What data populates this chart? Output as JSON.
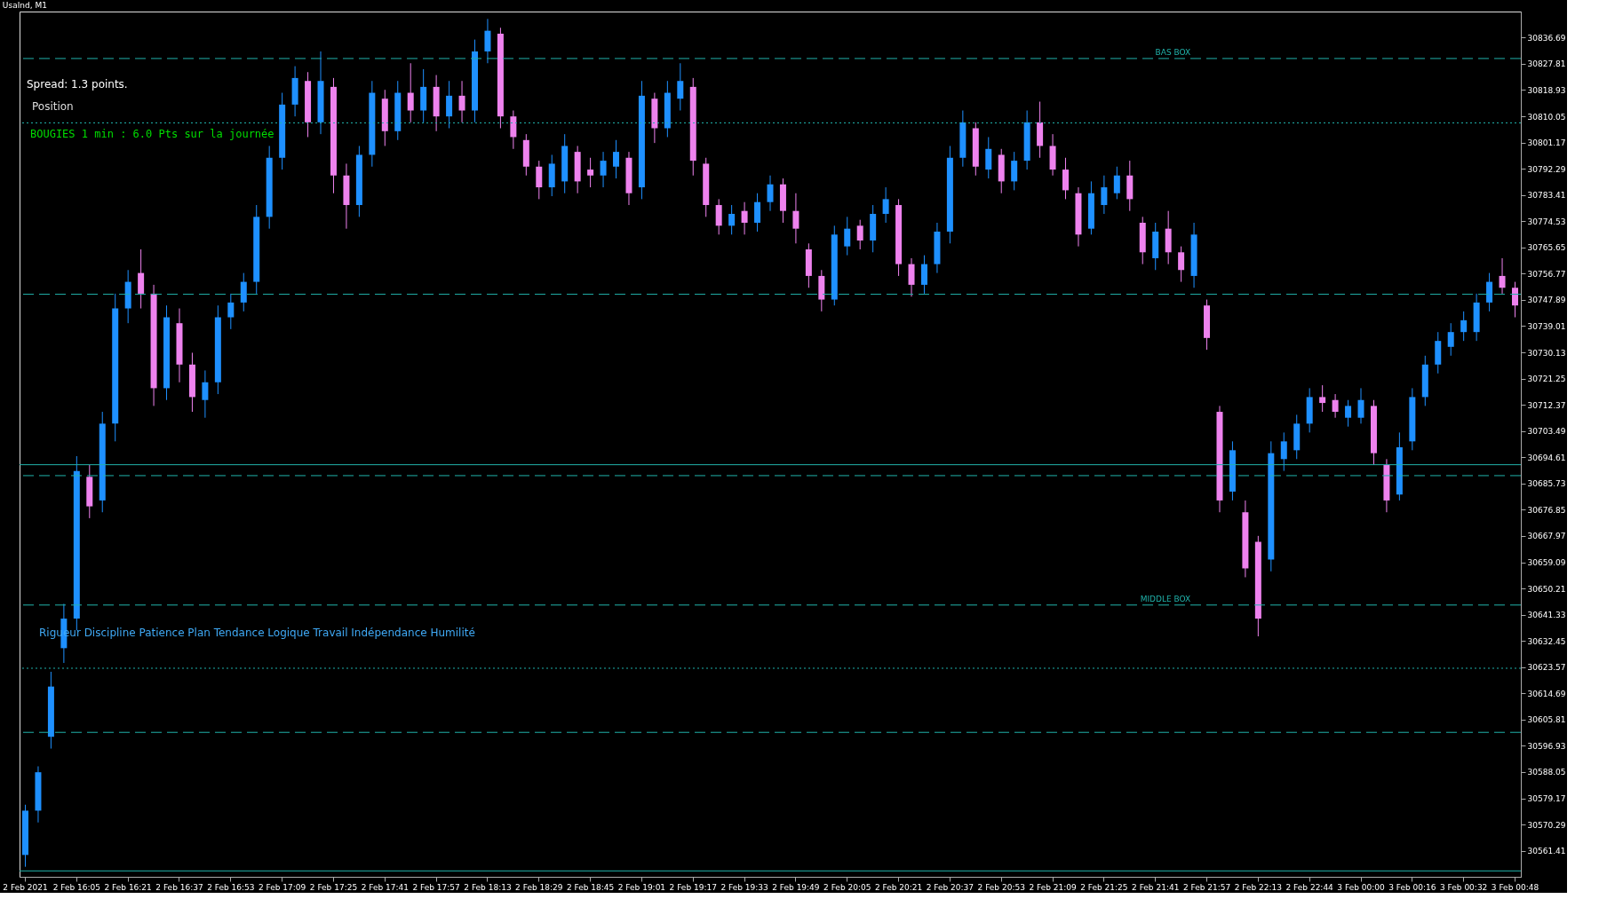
{
  "chart_data": {
    "type": "candlestick",
    "title": "UsaInd, M1",
    "categories": [
      "2 Feb 2021",
      null,
      null,
      null,
      "2 Feb 16:05",
      null,
      null,
      null,
      "2 Feb 16:21",
      null,
      null,
      null,
      "2 Feb 16:37",
      null,
      null,
      null,
      "2 Feb 16:53",
      null,
      null,
      null,
      "2 Feb 17:09",
      null,
      null,
      null,
      "2 Feb 17:25",
      null,
      null,
      null,
      "2 Feb 17:41",
      null,
      null,
      null,
      "2 Feb 17:57",
      null,
      null,
      null,
      "2 Feb 18:13",
      null,
      null,
      null,
      "2 Feb 18:29",
      null,
      null,
      null,
      "2 Feb 18:45",
      null,
      null,
      null,
      "2 Feb 19:01",
      null,
      null,
      null,
      "2 Feb 19:17",
      null,
      null,
      null,
      "2 Feb 19:33",
      null,
      null,
      null,
      "2 Feb 19:49",
      null,
      null,
      null,
      "2 Feb 20:05",
      null,
      null,
      null,
      "2 Feb 20:21",
      null,
      null,
      null,
      "2 Feb 20:37",
      null,
      null,
      null,
      "2 Feb 20:53",
      null,
      null,
      null,
      "2 Feb 21:09",
      null,
      null,
      null,
      "2 Feb 21:25",
      null,
      null,
      null,
      "2 Feb 21:41",
      null,
      null,
      null,
      "2 Feb 21:57",
      null,
      null,
      null,
      "2 Feb 22:13",
      null,
      null,
      null,
      "2 Feb 22:44",
      null,
      null,
      null,
      "3 Feb 00:00",
      null,
      null,
      null,
      "3 Feb 00:16",
      null,
      null,
      null,
      "3 Feb 00:32",
      null,
      null,
      null,
      "3 Feb 00:48"
    ],
    "ohlc": [
      [
        30560,
        30577,
        30556,
        30575
      ],
      [
        30575,
        30590,
        30571,
        30588
      ],
      [
        30600,
        30622,
        30596,
        30617
      ],
      [
        30630,
        30645,
        30625,
        30640
      ],
      [
        30640,
        30695,
        30636,
        30690
      ],
      [
        30688,
        30692,
        30674,
        30678
      ],
      [
        30680,
        30710,
        30676,
        30706
      ],
      [
        30706,
        30750,
        30700,
        30745
      ],
      [
        30745,
        30758,
        30740,
        30754
      ],
      [
        30757,
        30765,
        30745,
        30750
      ],
      [
        30750,
        30753,
        30712,
        30718
      ],
      [
        30718,
        30746,
        30714,
        30742
      ],
      [
        30740,
        30745,
        30720,
        30726
      ],
      [
        30726,
        30730,
        30710,
        30715
      ],
      [
        30714,
        30724,
        30708,
        30720
      ],
      [
        30720,
        30746,
        30716,
        30742
      ],
      [
        30742,
        30750,
        30738,
        30747
      ],
      [
        30747,
        30757,
        30744,
        30754
      ],
      [
        30754,
        30780,
        30750,
        30776
      ],
      [
        30776,
        30800,
        30772,
        30796
      ],
      [
        30796,
        30818,
        30792,
        30814
      ],
      [
        30814,
        30827,
        30810,
        30823
      ],
      [
        30822,
        30825,
        30803,
        30808
      ],
      [
        30808,
        30832,
        30804,
        30822
      ],
      [
        30820,
        30823,
        30784,
        30790
      ],
      [
        30790,
        30794,
        30772,
        30780
      ],
      [
        30780,
        30800,
        30776,
        30797
      ],
      [
        30797,
        30822,
        30793,
        30818
      ],
      [
        30816,
        30819,
        30800,
        30805
      ],
      [
        30805,
        30822,
        30802,
        30818
      ],
      [
        30818,
        30828,
        30808,
        30812
      ],
      [
        30812,
        30826,
        30808,
        30820
      ],
      [
        30820,
        30824,
        30805,
        30810
      ],
      [
        30810,
        30822,
        30806,
        30817
      ],
      [
        30817,
        30822,
        30808,
        30812
      ],
      [
        30812,
        30836,
        30808,
        30832
      ],
      [
        30832,
        30843,
        30828,
        30839
      ],
      [
        30838,
        30840,
        30806,
        30810
      ],
      [
        30810,
        30812,
        30799,
        30803
      ],
      [
        30802,
        30804,
        30790,
        30793
      ],
      [
        30793,
        30795,
        30782,
        30786
      ],
      [
        30786,
        30797,
        30783,
        30794
      ],
      [
        30788,
        30804,
        30784,
        30800
      ],
      [
        30798,
        30800,
        30784,
        30788
      ],
      [
        30792,
        30796,
        30786,
        30790
      ],
      [
        30790,
        30798,
        30786,
        30795
      ],
      [
        30793,
        30802,
        30789,
        30798
      ],
      [
        30796,
        30798,
        30780,
        30784
      ],
      [
        30786,
        30822,
        30782,
        30817
      ],
      [
        30816,
        30818,
        30801,
        30806
      ],
      [
        30806,
        30822,
        30803,
        30818
      ],
      [
        30816,
        30828,
        30812,
        30822
      ],
      [
        30820,
        30823,
        30790,
        30795
      ],
      [
        30794,
        30796,
        30776,
        30780
      ],
      [
        30780,
        30782,
        30770,
        30773
      ],
      [
        30773,
        30780,
        30770,
        30777
      ],
      [
        30778,
        30781,
        30770,
        30774
      ],
      [
        30774,
        30784,
        30771,
        30781
      ],
      [
        30781,
        30790,
        30778,
        30787
      ],
      [
        30787,
        30789,
        30774,
        30778
      ],
      [
        30778,
        30784,
        30767,
        30772
      ],
      [
        30765,
        30767,
        30752,
        30756
      ],
      [
        30756,
        30758,
        30744,
        30748
      ],
      [
        30748,
        30773,
        30746,
        30770
      ],
      [
        30766,
        30776,
        30763,
        30772
      ],
      [
        30773,
        30775,
        30765,
        30768
      ],
      [
        30768,
        30780,
        30764,
        30777
      ],
      [
        30777,
        30786,
        30774,
        30782
      ],
      [
        30780,
        30782,
        30756,
        30760
      ],
      [
        30760,
        30762,
        30749,
        30753
      ],
      [
        30753,
        30763,
        30750,
        30760
      ],
      [
        30760,
        30774,
        30757,
        30771
      ],
      [
        30771,
        30800,
        30767,
        30796
      ],
      [
        30796,
        30812,
        30793,
        30808
      ],
      [
        30806,
        30808,
        30790,
        30793
      ],
      [
        30792,
        30803,
        30789,
        30799
      ],
      [
        30797,
        30799,
        30784,
        30788
      ],
      [
        30788,
        30798,
        30785,
        30795
      ],
      [
        30795,
        30812,
        30792,
        30808
      ],
      [
        30808,
        30815,
        30796,
        30800
      ],
      [
        30800,
        30804,
        30790,
        30792
      ],
      [
        30792,
        30796,
        30782,
        30785
      ],
      [
        30784,
        30786,
        30766,
        30770
      ],
      [
        30772,
        30788,
        30770,
        30784
      ],
      [
        30780,
        30790,
        30777,
        30786
      ],
      [
        30784,
        30793,
        30782,
        30790
      ],
      [
        30790,
        30795,
        30778,
        30782
      ],
      [
        30774,
        30776,
        30760,
        30764
      ],
      [
        30762,
        30774,
        30758,
        30771
      ],
      [
        30772,
        30778,
        30760,
        30764
      ],
      [
        30764,
        30766,
        30754,
        30758
      ],
      [
        30756,
        30774,
        30752,
        30770
      ],
      [
        30746,
        30748,
        30731,
        30735
      ],
      [
        30710,
        30712,
        30676,
        30680
      ],
      [
        30683,
        30700,
        30680,
        30697
      ],
      [
        30676,
        30680,
        30654,
        30657
      ],
      [
        30666,
        30668,
        30634,
        30640
      ],
      [
        30660,
        30700,
        30656,
        30696
      ],
      [
        30694,
        30703,
        30690,
        30700
      ],
      [
        30697,
        30709,
        30694,
        30706
      ],
      [
        30706,
        30718,
        30703,
        30715
      ],
      [
        30715,
        30719,
        30710,
        30713
      ],
      [
        30714,
        30716,
        30708,
        30710
      ],
      [
        30708,
        30714,
        30705,
        30712
      ],
      [
        30708,
        30718,
        30706,
        30714
      ],
      [
        30712,
        30714,
        30692,
        30696
      ],
      [
        30692,
        30694,
        30676,
        30680
      ],
      [
        30682,
        30703,
        30680,
        30698
      ],
      [
        30700,
        30718,
        30697,
        30715
      ],
      [
        30715,
        30729,
        30712,
        30726
      ],
      [
        30726,
        30737,
        30723,
        30734
      ],
      [
        30732,
        30740,
        30729,
        30737
      ],
      [
        30737,
        30744,
        30734,
        30741
      ],
      [
        30737,
        30750,
        30734,
        30747
      ],
      [
        30747,
        30757,
        30744,
        30754
      ],
      [
        30756,
        30762,
        30750,
        30752
      ],
      [
        30752,
        30754,
        30742,
        30746
      ]
    ],
    "colors": [
      "#1e90ff",
      "#1e90ff",
      "#1e90ff",
      "#1e90ff",
      "#1e90ff",
      "#ee82ee",
      "#1e90ff",
      "#1e90ff",
      "#1e90ff",
      "#ee82ee",
      "#ee82ee",
      "#1e90ff",
      "#ee82ee",
      "#ee82ee",
      "#1e90ff",
      "#1e90ff",
      "#1e90ff",
      "#1e90ff",
      "#1e90ff",
      "#1e90ff",
      "#1e90ff",
      "#1e90ff",
      "#ee82ee",
      "#1e90ff",
      "#ee82ee",
      "#ee82ee",
      "#1e90ff",
      "#1e90ff",
      "#ee82ee",
      "#1e90ff",
      "#ee82ee",
      "#1e90ff",
      "#ee82ee",
      "#1e90ff",
      "#ee82ee",
      "#1e90ff",
      "#1e90ff",
      "#ee82ee",
      "#ee82ee",
      "#ee82ee",
      "#ee82ee",
      "#1e90ff",
      "#1e90ff",
      "#ee82ee",
      "#ee82ee",
      "#1e90ff",
      "#1e90ff",
      "#ee82ee",
      "#1e90ff",
      "#ee82ee",
      "#1e90ff",
      "#1e90ff",
      "#ee82ee",
      "#ee82ee",
      "#ee82ee",
      "#1e90ff",
      "#ee82ee",
      "#1e90ff",
      "#1e90ff",
      "#ee82ee",
      "#ee82ee",
      "#ee82ee",
      "#ee82ee",
      "#1e90ff",
      "#1e90ff",
      "#ee82ee",
      "#1e90ff",
      "#1e90ff",
      "#ee82ee",
      "#ee82ee",
      "#1e90ff",
      "#1e90ff",
      "#1e90ff",
      "#1e90ff",
      "#ee82ee",
      "#1e90ff",
      "#ee82ee",
      "#1e90ff",
      "#1e90ff",
      "#ee82ee",
      "#ee82ee",
      "#ee82ee",
      "#ee82ee",
      "#1e90ff",
      "#1e90ff",
      "#1e90ff",
      "#ee82ee",
      "#ee82ee",
      "#1e90ff",
      "#ee82ee",
      "#ee82ee",
      "#1e90ff",
      "#ee82ee",
      "#ee82ee",
      "#1e90ff",
      "#ee82ee",
      "#ee82ee",
      "#1e90ff",
      "#1e90ff",
      "#1e90ff",
      "#1e90ff",
      "#ee82ee",
      "#ee82ee",
      "#1e90ff",
      "#1e90ff",
      "#ee82ee",
      "#ee82ee",
      "#1e90ff",
      "#1e90ff",
      "#1e90ff",
      "#1e90ff",
      "#1e90ff",
      "#1e90ff",
      "#1e90ff",
      "#1e90ff",
      "#ee82ee",
      "#ee82ee"
    ],
    "ylim": [
      30552.6,
      30845.5
    ],
    "yticks": [
      30836.69,
      30827.81,
      30818.93,
      30810.05,
      30801.17,
      30792.29,
      30783.41,
      30774.53,
      30765.65,
      30756.77,
      30747.89,
      30739.01,
      30730.13,
      30721.25,
      30712.37,
      30703.49,
      30694.61,
      30685.73,
      30676.85,
      30667.97,
      30659.09,
      30650.21,
      30641.33,
      30632.45,
      30623.57,
      30614.69,
      30605.81,
      30596.93,
      30588.05,
      30579.17,
      30570.29,
      30561.41
    ],
    "grid": false,
    "ref_lines": [
      {
        "axis": "y",
        "value": 30829.6,
        "label": "BAS BOX",
        "color": "#20b2aa",
        "line_style": "dashed"
      },
      {
        "axis": "y",
        "value": 30807.8,
        "color": "#20b2aa",
        "line_style": "dotted"
      },
      {
        "axis": "y",
        "value": 30749.8,
        "color": "#20b2aa",
        "line_style": "dashed"
      },
      {
        "axis": "y",
        "value": 30692.1,
        "color": "#20b2aa",
        "line_style": "solid"
      },
      {
        "axis": "y",
        "value": 30688.4,
        "color": "#20b2aa",
        "line_style": "dashed"
      },
      {
        "axis": "y",
        "value": 30644.6,
        "label": "MIDDLE BOX",
        "color": "#20b2aa",
        "line_style": "dashed"
      },
      {
        "axis": "y",
        "value": 30623.2,
        "color": "#20b2aa",
        "line_style": "dotted"
      },
      {
        "axis": "y",
        "value": 30601.5,
        "color": "#20b2aa",
        "line_style": "dashed"
      },
      {
        "axis": "y",
        "value": 30554.6,
        "color": "#20b2aa",
        "line_style": "solid"
      }
    ],
    "annotations": [
      "Spread: 1.3 points.",
      "Position",
      "BOUGIES 1 min : 6.0 Pts sur la journée",
      "Rigueur Discipline Patience Plan Tendance Logique Travail Indépendance Humilité"
    ]
  }
}
